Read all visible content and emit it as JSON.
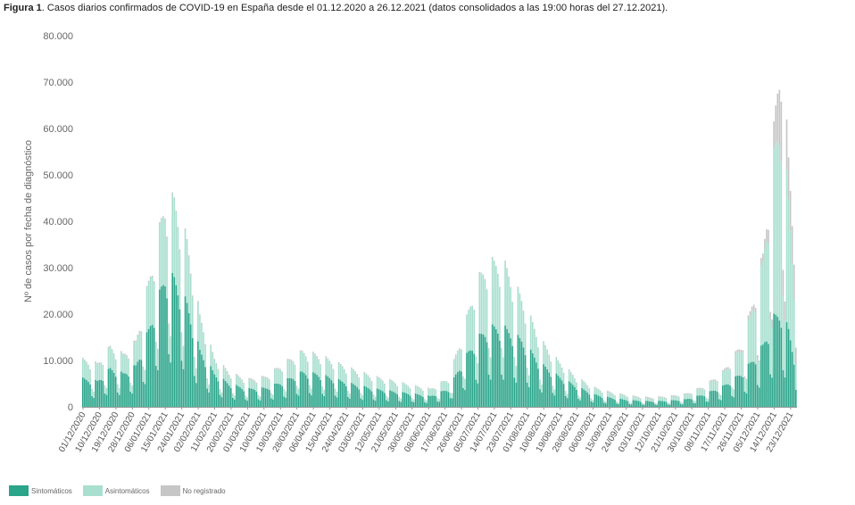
{
  "figure": {
    "label": "Figura 1",
    "caption": ". Casos diarios confirmados de COVID-19 en España desde el 01.12.2020 a 26.12.2021 (datos consolidados a las 19:00 horas del 27.12.2021)."
  },
  "chart_data": {
    "type": "bar",
    "stacked": true,
    "ylabel": "Nº de casos por fecha de diagnóstico",
    "xlabel": "",
    "ylim": [
      0,
      80000
    ],
    "yticks": [
      "0",
      "10.000",
      "20.000",
      "30.000",
      "40.000",
      "50.000",
      "60.000",
      "70.000",
      "80.000"
    ],
    "x_tick_labels": [
      "01/12/2020",
      "10/12/2020",
      "19/12/2020",
      "28/12/2020",
      "06/01/2021",
      "15/01/2021",
      "24/01/2021",
      "02/02/2021",
      "11/02/2021",
      "20/02/2021",
      "01/03/2021",
      "10/03/2021",
      "19/03/2021",
      "28/03/2021",
      "06/04/2021",
      "15/04/2021",
      "24/04/2021",
      "03/05/2021",
      "12/05/2021",
      "21/05/2021",
      "30/05/2021",
      "08/06/2021",
      "17/06/2021",
      "26/06/2021",
      "05/07/2021",
      "14/07/2021",
      "23/07/2021",
      "01/08/2021",
      "10/08/2021",
      "19/08/2021",
      "28/08/2021",
      "06/09/2021",
      "15/09/2021",
      "24/09/2021",
      "03/10/2021",
      "12/10/2021",
      "21/10/2021",
      "30/10/2021",
      "08/11/2021",
      "17/11/2021",
      "26/11/2021",
      "05/12/2021",
      "14/12/2021",
      "23/12/2021"
    ],
    "x_tick_interval_days": 9,
    "start_date": "01/12/2020",
    "end_date": "26/12/2021",
    "legend_position": "bottom-left",
    "grid": false,
    "series": [
      {
        "name": "Sintomáticos",
        "color": "#2aa58a",
        "anchors": [
          [
            0,
            5500
          ],
          [
            8,
            5000
          ],
          [
            15,
            7500
          ],
          [
            22,
            6500
          ],
          [
            29,
            8000
          ],
          [
            36,
            15000
          ],
          [
            45,
            25500
          ],
          [
            50,
            25000
          ],
          [
            57,
            20000
          ],
          [
            64,
            11000
          ],
          [
            72,
            6500
          ],
          [
            80,
            4500
          ],
          [
            90,
            3500
          ],
          [
            100,
            3700
          ],
          [
            110,
            5000
          ],
          [
            120,
            6800
          ],
          [
            130,
            6300
          ],
          [
            140,
            5200
          ],
          [
            150,
            4200
          ],
          [
            160,
            3500
          ],
          [
            170,
            3000
          ],
          [
            180,
            2600
          ],
          [
            190,
            2100
          ],
          [
            200,
            3500
          ],
          [
            208,
            9000
          ],
          [
            215,
            13000
          ],
          [
            222,
            15500
          ],
          [
            230,
            15500
          ],
          [
            240,
            13000
          ],
          [
            250,
            8500
          ],
          [
            260,
            6000
          ],
          [
            270,
            4000
          ],
          [
            280,
            2400
          ],
          [
            290,
            1700
          ],
          [
            300,
            1300
          ],
          [
            310,
            1100
          ],
          [
            320,
            1200
          ],
          [
            330,
            1500
          ],
          [
            340,
            2500
          ],
          [
            350,
            4000
          ],
          [
            360,
            6500
          ],
          [
            365,
            8500
          ],
          [
            372,
            12000
          ],
          [
            378,
            17500
          ],
          [
            382,
            18500
          ],
          [
            386,
            15000
          ],
          [
            391,
            6500
          ]
        ]
      },
      {
        "name": "Asintomáticos",
        "color": "#a8dfcf",
        "anchors": [
          [
            0,
            3500
          ],
          [
            8,
            3200
          ],
          [
            15,
            4000
          ],
          [
            22,
            3500
          ],
          [
            29,
            4500
          ],
          [
            36,
            9000
          ],
          [
            45,
            14000
          ],
          [
            50,
            15000
          ],
          [
            57,
            12000
          ],
          [
            64,
            6500
          ],
          [
            72,
            2800
          ],
          [
            80,
            2000
          ],
          [
            90,
            1600
          ],
          [
            100,
            2000
          ],
          [
            110,
            3300
          ],
          [
            120,
            3800
          ],
          [
            130,
            3500
          ],
          [
            140,
            3000
          ],
          [
            150,
            2600
          ],
          [
            160,
            2200
          ],
          [
            170,
            1900
          ],
          [
            180,
            1500
          ],
          [
            190,
            1300
          ],
          [
            200,
            2000
          ],
          [
            208,
            5500
          ],
          [
            215,
            11000
          ],
          [
            222,
            12500
          ],
          [
            230,
            12500
          ],
          [
            240,
            8000
          ],
          [
            250,
            4500
          ],
          [
            260,
            2800
          ],
          [
            270,
            1600
          ],
          [
            280,
            1200
          ],
          [
            290,
            900
          ],
          [
            300,
            700
          ],
          [
            310,
            600
          ],
          [
            320,
            700
          ],
          [
            330,
            900
          ],
          [
            340,
            1400
          ],
          [
            350,
            2500
          ],
          [
            360,
            5000
          ],
          [
            365,
            9000
          ],
          [
            372,
            16000
          ],
          [
            378,
            31000
          ],
          [
            382,
            39000
          ],
          [
            386,
            25000
          ],
          [
            391,
            9000
          ]
        ]
      },
      {
        "name": "No registrado",
        "color": "#c6c6c6",
        "anchors": [
          [
            0,
            200
          ],
          [
            50,
            300
          ],
          [
            200,
            100
          ],
          [
            340,
            200
          ],
          [
            360,
            500
          ],
          [
            372,
            1500
          ],
          [
            378,
            5000
          ],
          [
            382,
            14000
          ],
          [
            386,
            8000
          ],
          [
            391,
            8000
          ]
        ]
      }
    ]
  }
}
